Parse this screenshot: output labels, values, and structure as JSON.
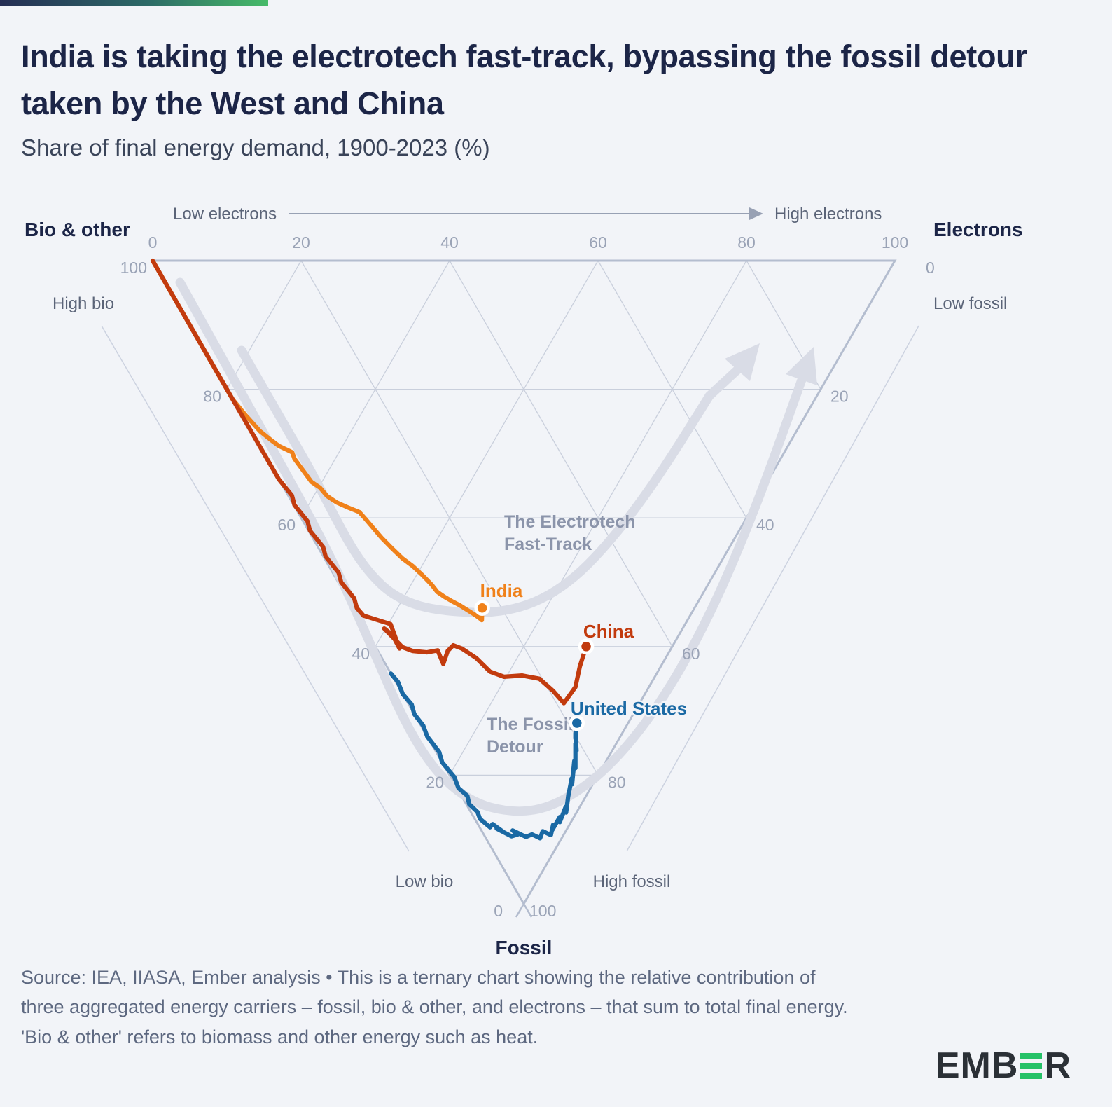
{
  "header": {
    "title": "India is taking the electrotech fast-track, bypassing the fossil detour taken by the West and China",
    "subtitle": "Share of final energy demand, 1900-2023 (%)"
  },
  "axes": {
    "electrons": {
      "title": "Electrons",
      "low_label": "Low electrons",
      "high_label": "High electrons",
      "ticks": [
        0,
        20,
        40,
        60,
        80,
        100
      ]
    },
    "bio": {
      "title": "Bio & other",
      "high_label": "High bio",
      "low_label": "Low bio",
      "ticks": [
        100,
        80,
        60,
        40,
        20,
        0
      ]
    },
    "fossil": {
      "title": "Fossil",
      "low_label": "Low fossil",
      "high_label": "High fossil",
      "ticks": [
        0,
        20,
        40,
        60,
        80,
        100
      ]
    }
  },
  "annotations": {
    "fast_track_line1": "The Electrotech",
    "fast_track_line2": "Fast-Track",
    "fossil_detour_line1": "The Fossil",
    "fossil_detour_line2": "Detour"
  },
  "chart_data": {
    "type": "ternary-line",
    "title": "Share of final energy demand, 1900-2023 (%)",
    "axes_order_note": "points are [electrons_share, fossil_share]; bio_other_share = 100 - electrons - fossil",
    "axis_range": [
      0,
      100
    ],
    "grid_step": 20,
    "period_shown": "1900-2023",
    "series": [
      {
        "name": "India",
        "color": "#f0811a",
        "end_point_shares": {
          "electrons": 17.4,
          "fossil": 54.0,
          "bio_other": 28.6
        },
        "points_ef": [
          [
            0,
            0
          ],
          [
            0,
            5
          ],
          [
            0,
            9
          ],
          [
            0,
            13
          ],
          [
            0,
            16
          ],
          [
            0,
            19
          ],
          [
            0,
            21.5
          ],
          [
            0.5,
            24
          ],
          [
            1.2,
            26.5
          ],
          [
            2.0,
            27.9
          ],
          [
            2.6,
            28.8
          ],
          [
            3.9,
            29.8
          ],
          [
            3.7,
            30.8
          ],
          [
            4.2,
            34.4
          ],
          [
            4.9,
            35.3
          ],
          [
            5.2,
            36.6
          ],
          [
            6.0,
            37.6
          ],
          [
            7.0,
            38.3
          ],
          [
            8.3,
            39.1
          ],
          [
            8.6,
            40.2
          ],
          [
            9.3,
            43.1
          ],
          [
            9.9,
            44.8
          ],
          [
            10.5,
            46.3
          ],
          [
            11.3,
            47.5
          ],
          [
            11.9,
            48.9
          ],
          [
            12.4,
            50.4
          ],
          [
            12.6,
            51.5
          ],
          [
            13.2,
            52.3
          ],
          [
            13.9,
            53.0
          ],
          [
            14.6,
            53.6
          ],
          [
            15.3,
            54.4
          ],
          [
            15.9,
            55.1
          ],
          [
            16.3,
            55.7
          ],
          [
            16.7,
            55.3
          ],
          [
            16.4,
            55.9
          ],
          [
            17.4,
            54.0
          ]
        ]
      },
      {
        "name": "China",
        "color": "#c23b0e",
        "end_point_shares": {
          "electrons": 28.4,
          "fossil": 60.0,
          "bio_other": 11.6
        },
        "points_ef": [
          [
            0,
            0
          ],
          [
            0,
            5
          ],
          [
            0,
            10
          ],
          [
            0,
            15
          ],
          [
            0,
            20
          ],
          [
            0,
            25
          ],
          [
            0,
            30
          ],
          [
            0,
            34
          ],
          [
            0.5,
            36.5
          ],
          [
            0.1,
            38
          ],
          [
            0.6,
            40.5
          ],
          [
            0.2,
            42
          ],
          [
            0.7,
            44.5
          ],
          [
            0.3,
            46
          ],
          [
            0.8,
            48.5
          ],
          [
            0.4,
            50
          ],
          [
            0.9,
            52.5
          ],
          [
            0.5,
            54
          ],
          [
            0.8,
            55.2
          ],
          [
            3.8,
            56.5
          ],
          [
            3.1,
            60.3
          ],
          [
            3.2,
            58.2
          ],
          [
            2.6,
            57.2
          ],
          [
            3.6,
            60.1
          ],
          [
            4.7,
            60.7
          ],
          [
            6.5,
            60.9
          ],
          [
            8.1,
            60.6
          ],
          [
            7.8,
            62.7
          ],
          [
            9.4,
            60.7
          ],
          [
            10.6,
            59.8
          ],
          [
            11.5,
            60.3
          ],
          [
            12.7,
            61.8
          ],
          [
            13.5,
            63.9
          ],
          [
            15.0,
            64.7
          ],
          [
            17.5,
            64.5
          ],
          [
            19.6,
            65.0
          ],
          [
            20.5,
            66.9
          ],
          [
            21.0,
            68.8
          ],
          [
            23.8,
            66.3
          ],
          [
            26.0,
            63.1
          ],
          [
            28.4,
            60.0
          ]
        ]
      },
      {
        "name": "United States",
        "color": "#1a69a4",
        "end_point_shares": {
          "electrons": 21.2,
          "fossil": 71.9,
          "bio_other": 6.9
        },
        "points_ef": [
          [
            0,
            64.2
          ],
          [
            0.3,
            65.5
          ],
          [
            0,
            67.4
          ],
          [
            0.4,
            69.0
          ],
          [
            0,
            70.5
          ],
          [
            0.3,
            72.3
          ],
          [
            0,
            74.0
          ],
          [
            0.4,
            76.4
          ],
          [
            0,
            78.0
          ],
          [
            0.5,
            80.3
          ],
          [
            0.2,
            82.0
          ],
          [
            0.8,
            83.2
          ],
          [
            0.4,
            84.5
          ],
          [
            0.9,
            85.7
          ],
          [
            0.7,
            86.8
          ],
          [
            1.4,
            88.1
          ],
          [
            2.0,
            87.6
          ],
          [
            2.9,
            88.9
          ],
          [
            2.2,
            88.3
          ],
          [
            3.6,
            89.5
          ],
          [
            4.6,
            89.2
          ],
          [
            4.2,
            88.6
          ],
          [
            5.5,
            89.6
          ],
          [
            6.5,
            89.2
          ],
          [
            7.3,
            89.8
          ],
          [
            8.2,
            88.7
          ],
          [
            9.0,
            89.3
          ],
          [
            10.1,
            87.7
          ],
          [
            9.6,
            88.5
          ],
          [
            11.6,
            86.5
          ],
          [
            11.2,
            87.3
          ],
          [
            13.2,
            84.9
          ],
          [
            12.8,
            85.8
          ],
          [
            14.7,
            82.7
          ],
          [
            14.2,
            83.5
          ],
          [
            16.2,
            80.5
          ],
          [
            15.8,
            81.4
          ],
          [
            17.9,
            77.8
          ],
          [
            17.5,
            78.9
          ],
          [
            19.4,
            75.1
          ],
          [
            19.0,
            76.2
          ],
          [
            20.2,
            73.5
          ],
          [
            19.8,
            74.3
          ],
          [
            21.2,
            71.9
          ]
        ]
      }
    ]
  },
  "footer": {
    "source": "Source: IEA, IIASA, Ember analysis • This is a ternary chart showing the relative contribution of three aggregated energy carriers – fossil, bio & other, and electrons – that sum to total final energy. 'Bio & other' refers to biomass and other energy such as heat.",
    "logo_left": "EMB",
    "logo_right": "R"
  },
  "colors": {
    "background": "#f2f4f8",
    "title": "#1c2547",
    "india": "#f0811a",
    "china": "#c23b0e",
    "united_states": "#1a69a4",
    "swoosh": "#d9dce6",
    "grid": "#c9cfdc",
    "triangle_edge": "#b4bdcf",
    "logo_green": "#26c268"
  }
}
